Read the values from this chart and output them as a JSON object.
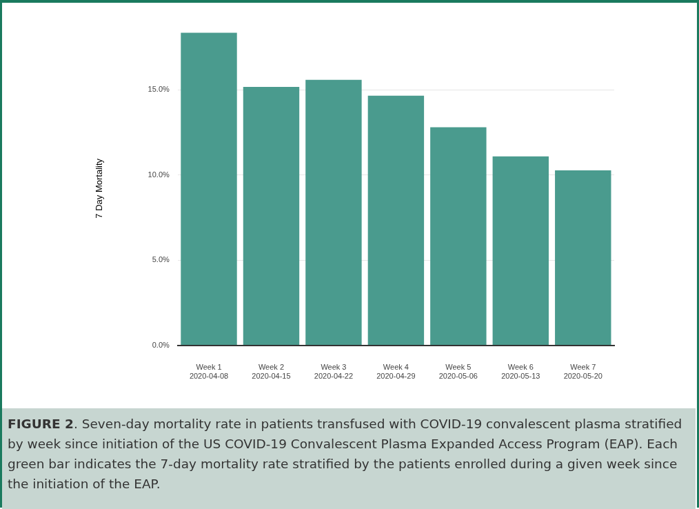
{
  "chart_data": {
    "type": "bar",
    "categories": [
      "Week 1\n2020-04-08",
      "Week 2\n2020-04-15",
      "Week 3\n2020-04-22",
      "Week 4\n2020-04-29",
      "Week 5\n2020-05-06",
      "Week 6\n2020-05-13",
      "Week 7\n2020-05-20"
    ],
    "values": [
      18.34,
      15.16,
      15.58,
      14.65,
      12.79,
      11.08,
      10.26
    ],
    "color": "#4a9b8e",
    "ylabel": "7 Day Mortality",
    "ylim": [
      0,
      18.4
    ],
    "yticks": [
      {
        "value": 0,
        "label": "0.0%"
      },
      {
        "value": 5,
        "label": "5.0%"
      },
      {
        "value": 10,
        "label": "10.0%"
      },
      {
        "value": 15,
        "label": "15.0%"
      }
    ],
    "grid": "y",
    "annotations": [
      "FIGURE 2. Seven-day mortality rate in patients transfused with COVID-19 convalescent plasma stratified by week since initiation of the US COVID-19 Convalescent Plasma Expanded Access Program (EAP). Each green bar indicates the 7-day mortality rate stratified by the patients enrolled during a given week since the initiation of the EAP."
    ]
  }
}
